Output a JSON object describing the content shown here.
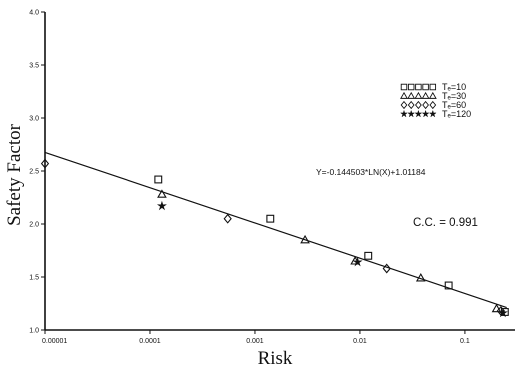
{
  "chart_data": {
    "type": "scatter",
    "xscale": "log",
    "xlim": [
      1e-05,
      0.3
    ],
    "ylim": [
      1.0,
      4.0
    ],
    "xlabel": "Risk",
    "ylabel": "Safety Factor",
    "x_ticks": [
      {
        "value": 1e-05,
        "label": "0.00001"
      },
      {
        "value": 0.0001,
        "label": "0.0001"
      },
      {
        "value": 0.001,
        "label": "0.001"
      },
      {
        "value": 0.01,
        "label": "0.01"
      },
      {
        "value": 0.1,
        "label": "0.1"
      }
    ],
    "y_ticks": [
      {
        "value": 1.0,
        "label": "1.0"
      },
      {
        "value": 1.5,
        "label": "1.5"
      },
      {
        "value": 2.0,
        "label": "2.0"
      },
      {
        "value": 2.5,
        "label": "2.5"
      },
      {
        "value": 3.0,
        "label": "3.0"
      },
      {
        "value": 3.5,
        "label": "3.5"
      },
      {
        "value": 4.0,
        "label": "4.0"
      }
    ],
    "legend_position": "top-right",
    "series": [
      {
        "name": "Tₑ=10",
        "marker": "square",
        "points": [
          [
            0.00012,
            2.42
          ],
          [
            0.0014,
            2.05
          ],
          [
            0.012,
            1.7
          ],
          [
            0.07,
            1.42
          ],
          [
            0.24,
            1.17
          ]
        ]
      },
      {
        "name": "Tₑ=30",
        "marker": "triangle",
        "points": [
          [
            0.00013,
            2.28
          ],
          [
            0.003,
            1.85
          ],
          [
            0.009,
            1.65
          ],
          [
            0.038,
            1.49
          ],
          [
            0.2,
            1.2
          ]
        ]
      },
      {
        "name": "Tₑ=60",
        "marker": "diamond",
        "points": [
          [
            1e-05,
            2.57
          ],
          [
            0.00055,
            2.05
          ],
          [
            0.018,
            1.58
          ],
          [
            0.22,
            1.18
          ]
        ]
      },
      {
        "name": "Tₑ=120",
        "marker": "star",
        "points": [
          [
            0.00013,
            2.17
          ],
          [
            0.0095,
            1.64
          ],
          [
            0.23,
            1.16
          ]
        ]
      }
    ],
    "fit_line": {
      "slope_ln": -0.144503,
      "intercept": 1.01184
    },
    "annotations": {
      "equation": "Y=-0.144503*LN(X)+1.01184",
      "cc": "C.C. = 0.991"
    }
  }
}
